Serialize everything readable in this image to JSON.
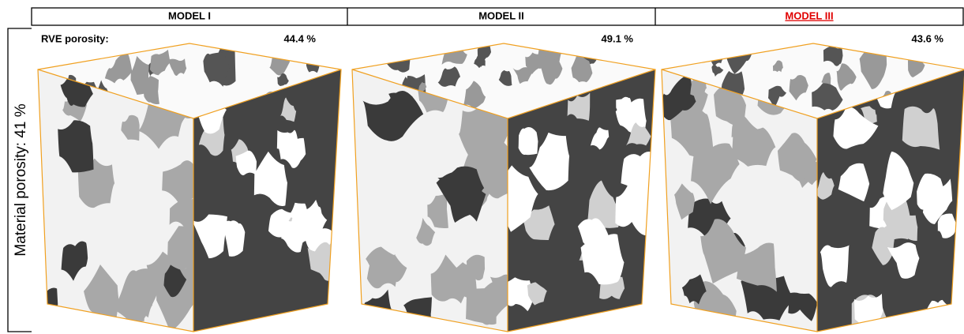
{
  "row_label": "Material porosity: 41 %",
  "rve_label": "RVE porosity:",
  "models": [
    {
      "name": "MODEL I",
      "rve_porosity": "44.4 %"
    },
    {
      "name": "MODEL II",
      "rve_porosity": "49.1 %"
    },
    {
      "name": "MODEL III",
      "rve_porosity": "43.6 %"
    }
  ]
}
